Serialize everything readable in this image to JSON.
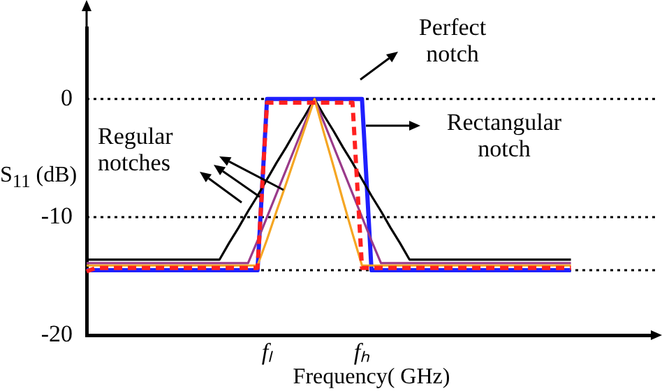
{
  "chart_data": {
    "type": "line",
    "xlabel": "Frequency( GHz)",
    "ylabel": "S$_{11}$ (dB)",
    "categories": [
      null,
      null,
      null,
      null,
      null,
      null,
      null,
      null,
      null,
      null,
      null,
      null,
      null,
      null,
      null,
      null,
      null,
      null,
      null,
      "fₗ",
      null,
      null,
      null,
      null,
      null,
      null,
      null,
      null,
      null,
      "fₕ",
      null,
      null,
      null,
      null,
      null,
      null,
      null,
      null,
      null,
      null,
      null,
      null,
      null,
      null,
      null,
      null,
      null,
      null,
      null,
      null,
      null,
      null,
      null,
      null,
      null,
      null,
      null,
      null,
      null,
      null,
      null
    ],
    "ylim": [
      -20,
      6
    ],
    "yticks": [
      0,
      -10,
      -20
    ],
    "marker": "none",
    "grid": false,
    "legend": false,
    "series": [
      {
        "color": "#1f1fff",
        "values": [
          -14.5,
          -14.5,
          -14.5,
          -14.5,
          -14.5,
          -14.5,
          -14.5,
          -14.5,
          -14.5,
          -14.5,
          -14.5,
          -14.5,
          -14.5,
          -14.5,
          -14.5,
          -14.5,
          -14.5,
          -14.5,
          -14.5,
          0,
          0,
          0,
          0,
          0,
          0,
          0,
          0,
          0,
          0,
          0,
          -14.5,
          -14.5,
          -14.5,
          -14.5,
          -14.5,
          -14.5,
          -14.5,
          -14.5,
          -14.5,
          -14.5,
          -14.5,
          -14.5,
          -14.5,
          -14.5,
          -14.5,
          -14.5,
          -14.5,
          -14.5,
          -14.5,
          -14.5,
          -14.5,
          -14.5,
          null,
          null,
          null,
          null,
          null,
          null,
          null,
          null,
          null
        ]
      },
      {
        "color": "#000000",
        "values": [
          -13.6,
          -13.6,
          -13.6,
          -13.6,
          -13.6,
          -13.6,
          -13.6,
          -13.6,
          -13.6,
          -13.6,
          -13.6,
          -13.6,
          -13.6,
          -13.6,
          -13.6,
          -12.2,
          -10.9,
          -9.5,
          -8.2,
          -6.8,
          -5.4,
          -4.1,
          -2.7,
          -1.4,
          0,
          -1.4,
          -2.7,
          -4.1,
          -5.4,
          -6.8,
          -8.2,
          -9.5,
          -10.9,
          -12.2,
          -13.6,
          -13.6,
          -13.6,
          -13.6,
          -13.6,
          -13.6,
          -13.6,
          -13.6,
          -13.6,
          -13.6,
          -13.6,
          -13.6,
          -13.6,
          -13.6,
          -13.6,
          -13.6,
          -13.6,
          -13.6,
          null,
          null,
          null,
          null,
          null,
          null,
          null,
          null,
          null
        ]
      },
      {
        "color": "#9a3a8a",
        "values": [
          -13.9,
          -13.9,
          -13.9,
          -13.9,
          -13.9,
          -13.9,
          -13.9,
          -13.9,
          -13.9,
          -13.9,
          -13.9,
          -13.9,
          -13.9,
          -13.9,
          -13.9,
          -13.9,
          -13.9,
          -13.9,
          -12,
          -10,
          -8,
          -6,
          -4,
          -2,
          0,
          -2,
          -4,
          -6,
          -8,
          -10,
          -12,
          -13.9,
          -13.9,
          -13.9,
          -13.9,
          -13.9,
          -13.9,
          -13.9,
          -13.9,
          -13.9,
          -13.9,
          -13.9,
          -13.9,
          -13.9,
          -13.9,
          -13.9,
          -13.9,
          -13.9,
          -13.9,
          -13.9,
          -13.9,
          -13.9,
          null,
          null,
          null,
          null,
          null,
          null,
          null,
          null,
          null
        ]
      },
      {
        "color": "#f5a623",
        "values": [
          -14.1,
          -14.1,
          -14.1,
          -14.1,
          -14.1,
          -14.1,
          -14.1,
          -14.1,
          -14.1,
          -14.1,
          -14.1,
          -14.1,
          -14.1,
          -14.1,
          -14.1,
          -14.1,
          -14.1,
          -14.1,
          -14.1,
          -11.9,
          -9.5,
          -7.2,
          -4.8,
          -2.4,
          0,
          -2.9,
          -5.7,
          -8.6,
          -11.4,
          -14.1,
          -14.1,
          -14.1,
          -14.1,
          -14.1,
          -14.1,
          -14.1,
          -14.1,
          -14.1,
          -14.1,
          -14.1,
          -14.1,
          -14.1,
          -14.1,
          -14.1,
          -14.1,
          -14.1,
          -14.1,
          -14.1,
          -14.1,
          -14.1,
          -14.1,
          -14.1,
          null,
          null,
          null,
          null,
          null,
          null,
          null,
          null,
          null
        ]
      },
      {
        "color": "#ff2020",
        "line_style": "dashed",
        "values": [
          -14.6,
          -14.3,
          -14.3,
          -14.3,
          -14.3,
          -14.3,
          -14.3,
          -14.3,
          -14.3,
          -14.3,
          -14.3,
          -14.3,
          -14.3,
          -14.3,
          -14.3,
          -14.3,
          -14.3,
          -14.3,
          -14.3,
          -0.3,
          -0.3,
          -0.3,
          -0.3,
          -0.3,
          -0.3,
          -0.3,
          -0.3,
          -0.3,
          -0.3,
          -14.3,
          -14.3,
          -14.3,
          -14.3,
          -14.3,
          -14.3,
          -14.3,
          -14.3,
          -14.3,
          -14.3,
          -14.3,
          -14.3,
          -14.3,
          -14.3,
          -14.3,
          -14.3,
          -14.3,
          -14.3,
          -14.3,
          -14.3,
          -14.3,
          -14.3,
          -14.3,
          null,
          null,
          null,
          null,
          null,
          null,
          null,
          null,
          null
        ]
      }
    ],
    "ref_lines": [
      {
        "axis": "y",
        "value": 0,
        "color": "#000000",
        "line_style": "dotted"
      },
      {
        "axis": "y",
        "value": -10,
        "color": "#000000",
        "line_style": "dotted"
      },
      {
        "axis": "y",
        "value": -14.5,
        "color": "#000000",
        "line_style": "dotted"
      }
    ],
    "annotations": [
      "Perfect notch",
      "Rectangular notch",
      "Regular notches"
    ]
  }
}
